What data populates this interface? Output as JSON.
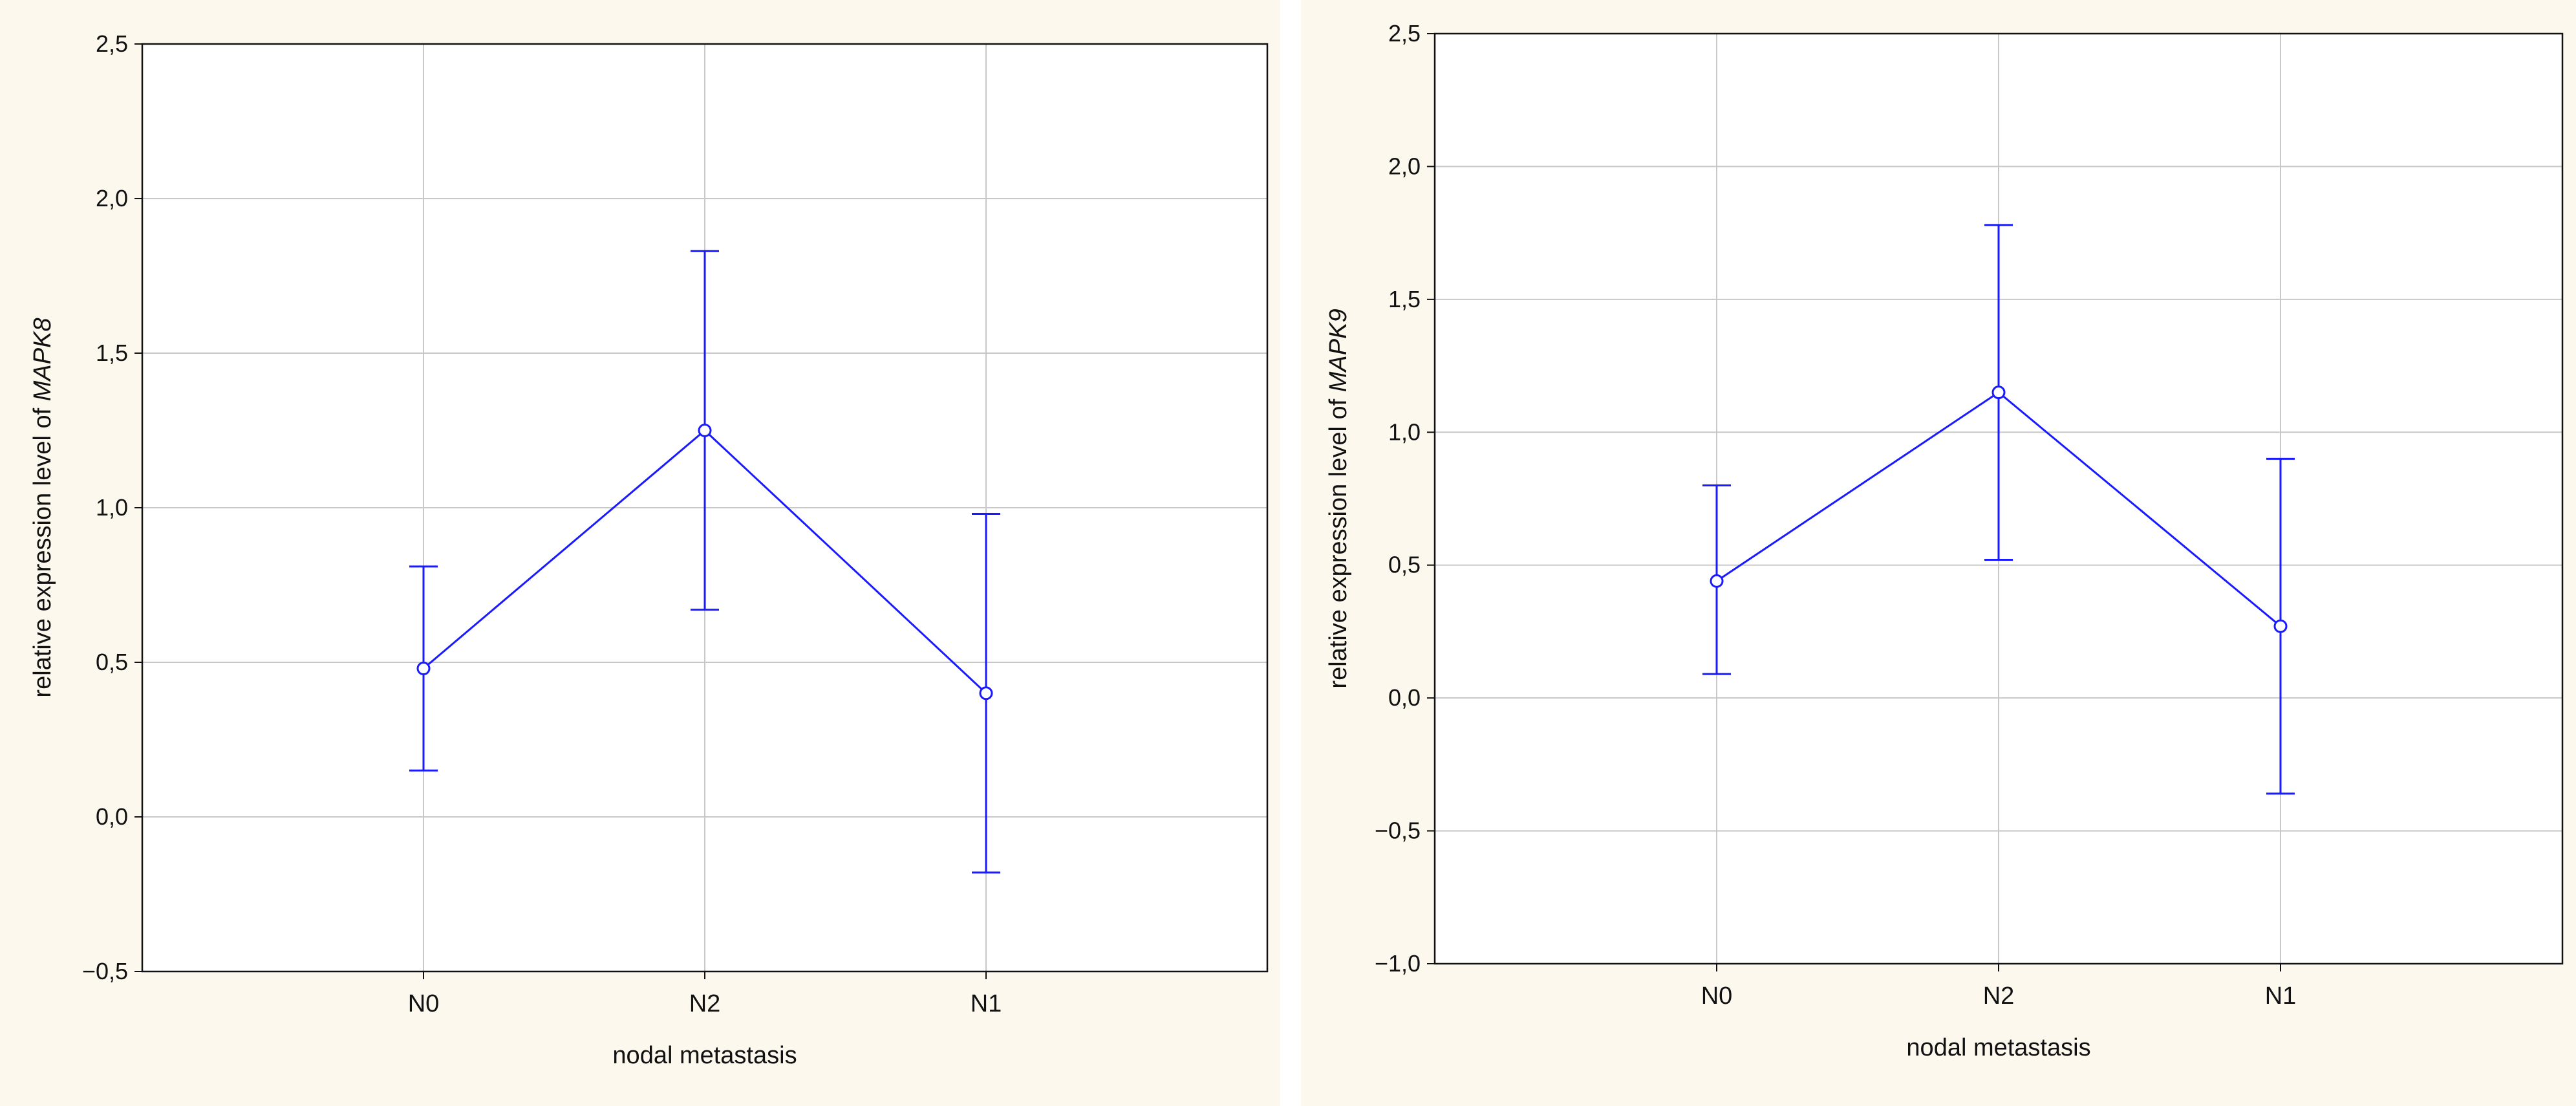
{
  "chart_data": [
    {
      "type": "line",
      "categories": [
        "N0",
        "N2",
        "N1"
      ],
      "series": [
        {
          "values": [
            0.48,
            1.25,
            0.4
          ],
          "lower": [
            0.15,
            0.67,
            -0.18
          ],
          "upper": [
            0.81,
            1.83,
            0.98
          ]
        }
      ],
      "xlabel": "nodal metastasis",
      "ylabel_prefix": "relative expression level of ",
      "ylabel_gene": "MAPK8",
      "ylim": [
        -0.5,
        2.5
      ],
      "yticks": [
        -0.5,
        0.0,
        0.5,
        1.0,
        1.5,
        2.0,
        2.5
      ],
      "ytick_labels": [
        "−0,5",
        "0,0",
        "0,5",
        "1,0",
        "1,5",
        "2,0",
        "2,5"
      ],
      "grid": true,
      "color": "#1a1aff"
    },
    {
      "type": "line",
      "categories": [
        "N0",
        "N2",
        "N1"
      ],
      "series": [
        {
          "values": [
            0.44,
            1.15,
            0.27
          ],
          "lower": [
            0.09,
            0.52,
            -0.36
          ],
          "upper": [
            0.8,
            1.78,
            0.9
          ]
        }
      ],
      "xlabel": "nodal metastasis",
      "ylabel_prefix": "relative expression level of ",
      "ylabel_gene": "MAPK9",
      "ylim": [
        -1.0,
        2.5
      ],
      "yticks": [
        -1.0,
        -0.5,
        0.0,
        0.5,
        1.0,
        1.5,
        2.0,
        2.5
      ],
      "ytick_labels": [
        "−1,0",
        "−0,5",
        "0,0",
        "0,5",
        "1,0",
        "1,5",
        "2,0",
        "2,5"
      ],
      "grid": true,
      "color": "#1a1aff"
    }
  ]
}
